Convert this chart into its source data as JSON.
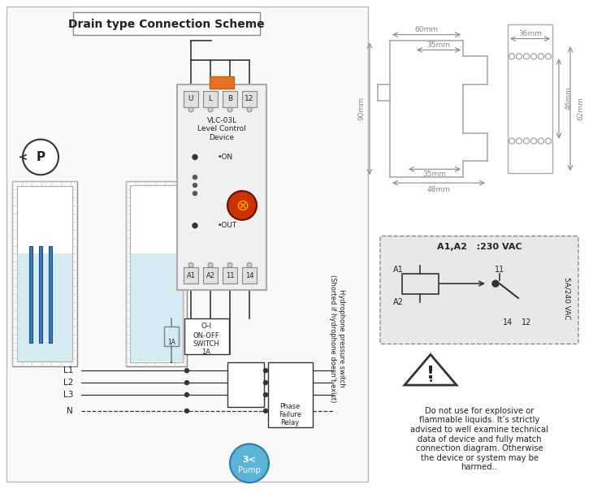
{
  "title": "Drain type Connection Scheme",
  "bg_color": "#ffffff",
  "border_color": "#aaaaaa",
  "dim_color": "#888888",
  "text_color": "#222222",
  "device_label": "VLC-03L\nLevel Control\nDevice",
  "terminals_top": [
    "U",
    "L",
    "B",
    "12"
  ],
  "terminals_bottom": [
    "A1",
    "A2",
    "11",
    "14"
  ],
  "switch_label": "O-I\nON-OFF\nSWITCH\n1A",
  "switch_sublabel": "1A",
  "lines_left": [
    "L1",
    "L2",
    "L3",
    "N"
  ],
  "right_label": "Hydrophone pressure switch\n(Shorted if hydrophone doesn't exist)",
  "phase_label": "Phase\nFailure\nRelay",
  "pump_label": "3<\nPump",
  "schematic_title": "A1,A2   :230 VAC",
  "schematic_labels": [
    "A1",
    "A2",
    "11",
    "14",
    "12",
    "5A/240 VAC"
  ],
  "dim_labels": [
    "60mm",
    "36mm",
    "90mm",
    "35mm",
    "35mm",
    "48mm",
    "46mm",
    "62mm"
  ],
  "warning_text": "Do not use for explosive or\nflammable liquids. It’s strictly\nadvised to well examine technical\ndata of device and fully match\nconnection diagram. Otherwise\nthe device or system may be\nharmed..",
  "relay_box_color": "#e8e8e8",
  "water_color": "#add8e6",
  "pump_color": "#5ab4d6",
  "wire_color": "#333333",
  "orange_clip": "#e87020"
}
